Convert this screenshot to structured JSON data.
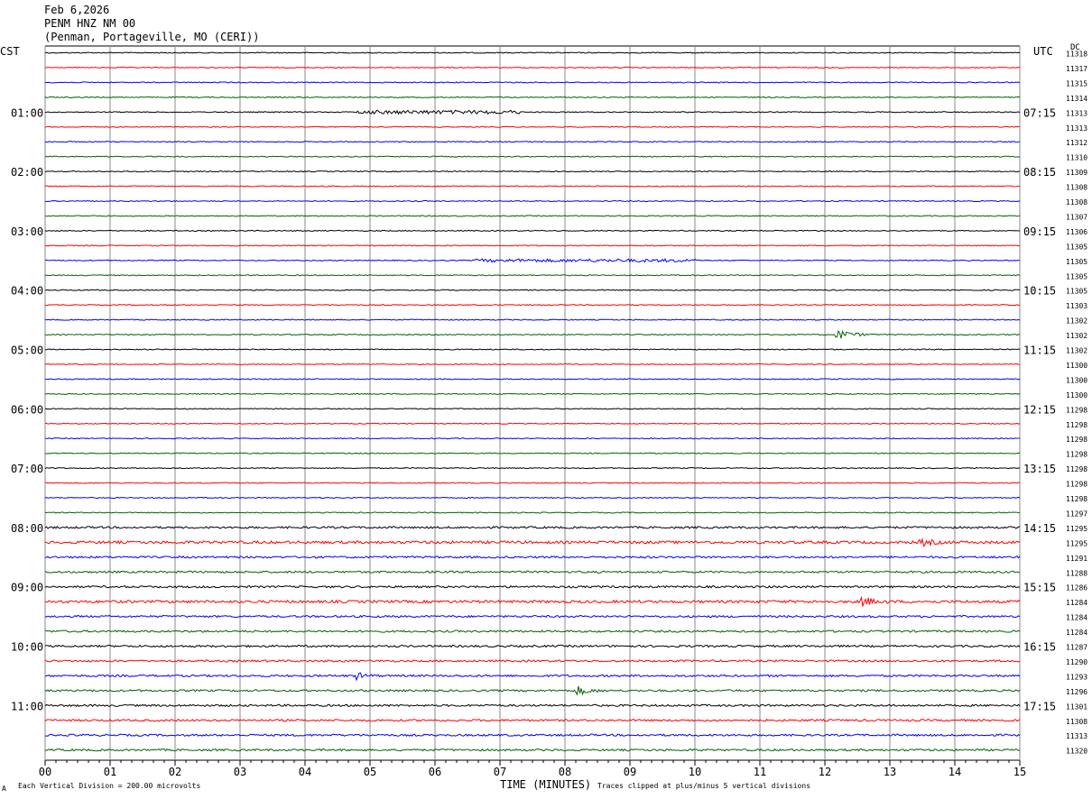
{
  "header": {
    "date": "Feb 6,2026",
    "station": "PENM HNZ NM 00",
    "location": "(Penman, Portageville, MO (CERI))"
  },
  "left_axis_title": "CST",
  "right_axis_title": "UTC",
  "dc_title": "DC",
  "footer": {
    "scale_note": "Each Vertical Division =  200.00 microvolts",
    "clip_note": "Traces clipped at plus/minus 5 vertical divisions",
    "corner_mark": "A"
  },
  "colors": {
    "line1": "#000000",
    "line2": "#ff0000",
    "line3": "#0000ff",
    "line4": "#006400",
    "grid": "#000000"
  },
  "chart_data": {
    "type": "line",
    "title": "PENM HNZ NM 00",
    "xlabel": "TIME (MINUTES)",
    "x_ticks": [
      "00",
      "01",
      "02",
      "03",
      "04",
      "05",
      "06",
      "07",
      "08",
      "09",
      "10",
      "11",
      "12",
      "13",
      "14",
      "15"
    ],
    "xlim": [
      0,
      15
    ],
    "trace_colors_cycle": [
      "black",
      "red",
      "blue",
      "green"
    ],
    "cst_labels": [
      "01:00",
      "02:00",
      "03:00",
      "04:00",
      "05:00",
      "06:00",
      "07:00",
      "08:00",
      "09:00",
      "10:00",
      "11:00"
    ],
    "utc_labels": [
      "07:15",
      "08:15",
      "09:15",
      "10:15",
      "11:15",
      "12:15",
      "13:15",
      "14:15",
      "15:15",
      "16:15",
      "17:15"
    ],
    "dc_offsets": [
      11318,
      11317,
      11315,
      11314,
      11313,
      11313,
      11312,
      11310,
      11309,
      11308,
      11308,
      11307,
      11306,
      11305,
      11305,
      11305,
      11305,
      11303,
      11302,
      11302,
      11302,
      11300,
      11300,
      11300,
      11298,
      11298,
      11298,
      11298,
      11298,
      11298,
      11298,
      11297,
      11295,
      11295,
      11291,
      11288,
      11286,
      11284,
      11284,
      11284,
      11287,
      11290,
      11293,
      11296,
      11301,
      11308,
      11313,
      11320
    ],
    "events": [
      {
        "trace": 4,
        "start_min": 4.8,
        "end_min": 7.3,
        "amp": 1.5,
        "note": "low-amplitude noise burst"
      },
      {
        "trace": 14,
        "start_min": 6.6,
        "end_min": 10.0,
        "amp": 1.2,
        "note": "low-amplitude noise burst"
      },
      {
        "trace": 19,
        "start_min": 12.15,
        "end_min": 12.8,
        "amp": 7,
        "note": "small event"
      },
      {
        "trace": 33,
        "start_min": 13.45,
        "end_min": 13.95,
        "amp": 4.5,
        "note": "small event"
      },
      {
        "trace": 37,
        "start_min": 12.55,
        "end_min": 13.0,
        "amp": 6.5,
        "note": "small event"
      },
      {
        "trace": 42,
        "start_min": 4.75,
        "end_min": 5.15,
        "amp": 5,
        "note": "small event"
      },
      {
        "trace": 43,
        "start_min": 8.15,
        "end_min": 8.65,
        "amp": 6,
        "note": "small event"
      }
    ]
  }
}
